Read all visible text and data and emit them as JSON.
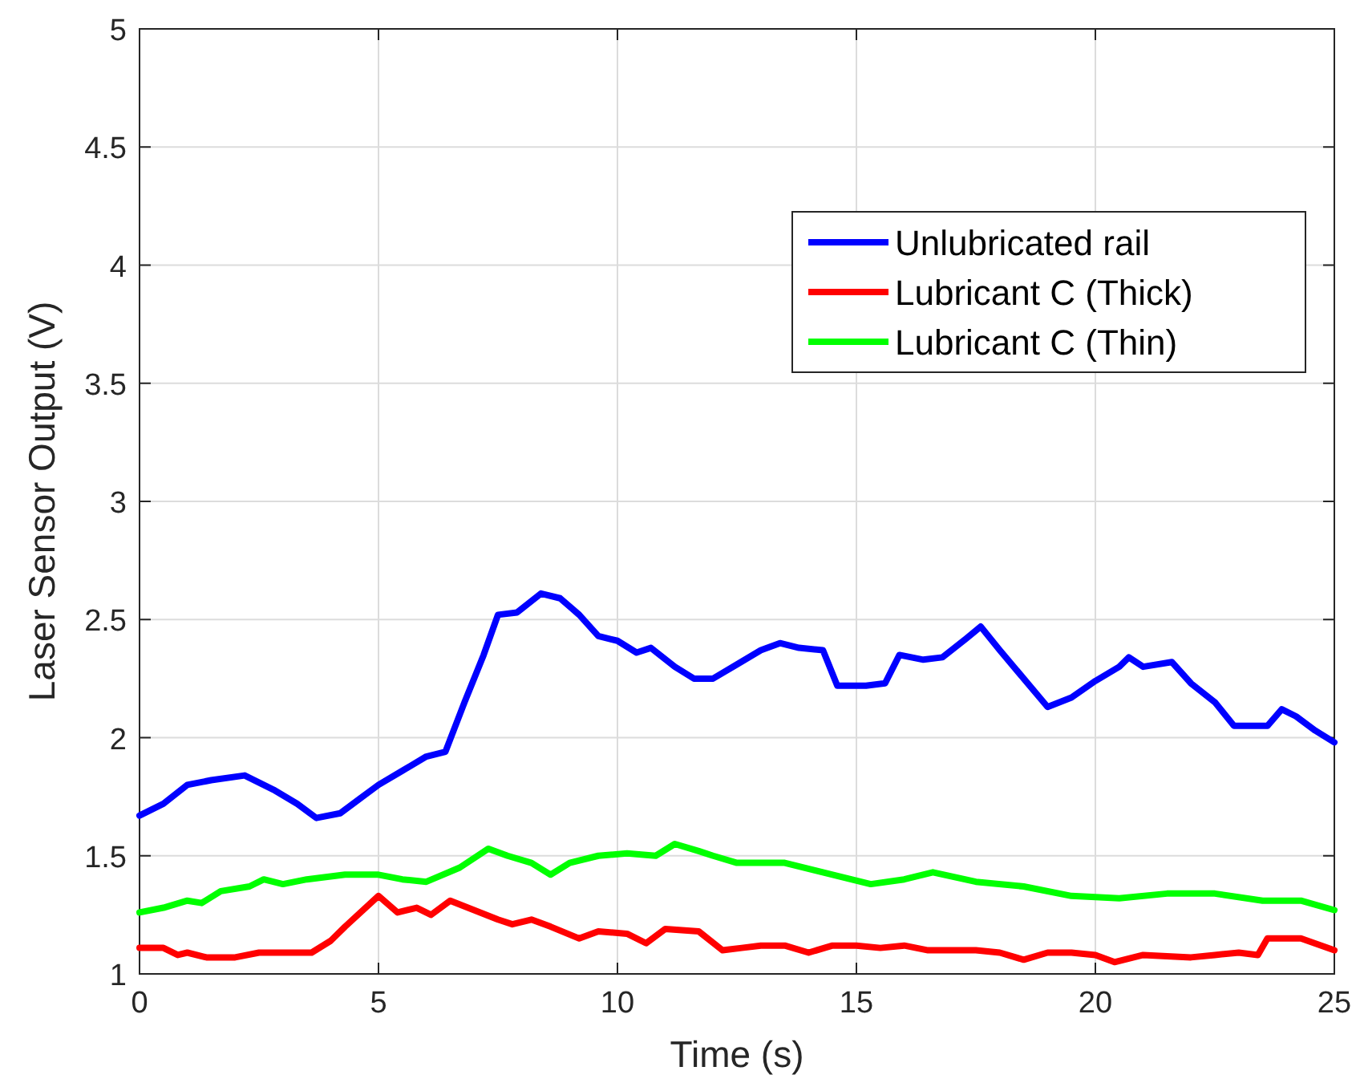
{
  "chart_data": {
    "type": "line",
    "xlabel": "Time (s)",
    "ylabel": "Laser Sensor Output (V)",
    "xlim": [
      0,
      25
    ],
    "ylim": [
      1,
      5
    ],
    "xticks": [
      0,
      5,
      10,
      15,
      20,
      25
    ],
    "yticks": [
      1,
      1.5,
      2,
      2.5,
      3,
      3.5,
      4,
      4.5,
      5
    ],
    "grid": true,
    "legend": "top right",
    "line_style": "solid",
    "marker": "none",
    "series": [
      {
        "name": "Unlubricated rail",
        "color": "#0000ff",
        "x": [
          0,
          0.5,
          1,
          1.5,
          2.2,
          2.8,
          3.3,
          3.7,
          4.2,
          4.6,
          5,
          5.5,
          6,
          6.4,
          6.8,
          7.2,
          7.5,
          7.9,
          8.4,
          8.8,
          9.2,
          9.6,
          10,
          10.4,
          10.7,
          11.2,
          11.6,
          12,
          12.5,
          13,
          13.4,
          13.8,
          14.3,
          14.6,
          15.2,
          15.6,
          15.9,
          16.4,
          16.8,
          17.3,
          17.6,
          18,
          18.5,
          19,
          19.5,
          20,
          20.5,
          20.7,
          21,
          21.6,
          22,
          22.5,
          22.9,
          23.6,
          23.9,
          24.2,
          24.6,
          25
        ],
        "values": [
          1.67,
          1.72,
          1.8,
          1.82,
          1.84,
          1.78,
          1.72,
          1.66,
          1.68,
          1.74,
          1.8,
          1.86,
          1.92,
          1.94,
          2.15,
          2.35,
          2.52,
          2.53,
          2.61,
          2.59,
          2.52,
          2.43,
          2.41,
          2.36,
          2.38,
          2.3,
          2.25,
          2.25,
          2.31,
          2.37,
          2.4,
          2.38,
          2.37,
          2.22,
          2.22,
          2.23,
          2.35,
          2.33,
          2.34,
          2.42,
          2.47,
          2.37,
          2.25,
          2.13,
          2.17,
          2.24,
          2.3,
          2.34,
          2.3,
          2.32,
          2.23,
          2.15,
          2.05,
          2.05,
          2.12,
          2.09,
          2.03,
          1.98
        ]
      },
      {
        "name": "Lubricant C (Thick)",
        "color": "#ff0000",
        "x": [
          0,
          0.5,
          0.8,
          1,
          1.4,
          2,
          2.5,
          3,
          3.6,
          4,
          4.3,
          5,
          5.4,
          5.8,
          6.1,
          6.5,
          7,
          7.5,
          7.8,
          8.2,
          8.6,
          9.2,
          9.6,
          10.2,
          10.6,
          11,
          11.7,
          12.2,
          12.6,
          13,
          13.5,
          14,
          14.5,
          15,
          15.5,
          16,
          16.5,
          17,
          17.5,
          18,
          18.5,
          19,
          19.5,
          20,
          20.4,
          21,
          22,
          22.5,
          23,
          23.4,
          23.6,
          24.3,
          25
        ],
        "values": [
          1.11,
          1.11,
          1.08,
          1.09,
          1.07,
          1.07,
          1.09,
          1.09,
          1.09,
          1.14,
          1.2,
          1.33,
          1.26,
          1.28,
          1.25,
          1.31,
          1.27,
          1.23,
          1.21,
          1.23,
          1.2,
          1.15,
          1.18,
          1.17,
          1.13,
          1.19,
          1.18,
          1.1,
          1.11,
          1.12,
          1.12,
          1.09,
          1.12,
          1.12,
          1.11,
          1.12,
          1.1,
          1.1,
          1.1,
          1.09,
          1.06,
          1.09,
          1.09,
          1.08,
          1.05,
          1.08,
          1.07,
          1.08,
          1.09,
          1.08,
          1.15,
          1.15,
          1.1
        ]
      },
      {
        "name": "Lubricant C (Thin)",
        "color": "#00ff00",
        "x": [
          0,
          0.5,
          1,
          1.3,
          1.7,
          2.3,
          2.6,
          3,
          3.5,
          4.3,
          5,
          5.5,
          6,
          6.7,
          7.3,
          7.7,
          8.2,
          8.6,
          9,
          9.6,
          10.2,
          10.8,
          11.2,
          11.7,
          12,
          12.5,
          13.5,
          14.5,
          15.3,
          16,
          16.6,
          17.5,
          18.5,
          19.5,
          20.5,
          21.5,
          22.5,
          23.5,
          24.3,
          25
        ],
        "values": [
          1.26,
          1.28,
          1.31,
          1.3,
          1.35,
          1.37,
          1.4,
          1.38,
          1.4,
          1.42,
          1.42,
          1.4,
          1.39,
          1.45,
          1.53,
          1.5,
          1.47,
          1.42,
          1.47,
          1.5,
          1.51,
          1.5,
          1.55,
          1.52,
          1.5,
          1.47,
          1.47,
          1.42,
          1.38,
          1.4,
          1.43,
          1.39,
          1.37,
          1.33,
          1.32,
          1.34,
          1.34,
          1.31,
          1.31,
          1.27
        ]
      }
    ]
  }
}
